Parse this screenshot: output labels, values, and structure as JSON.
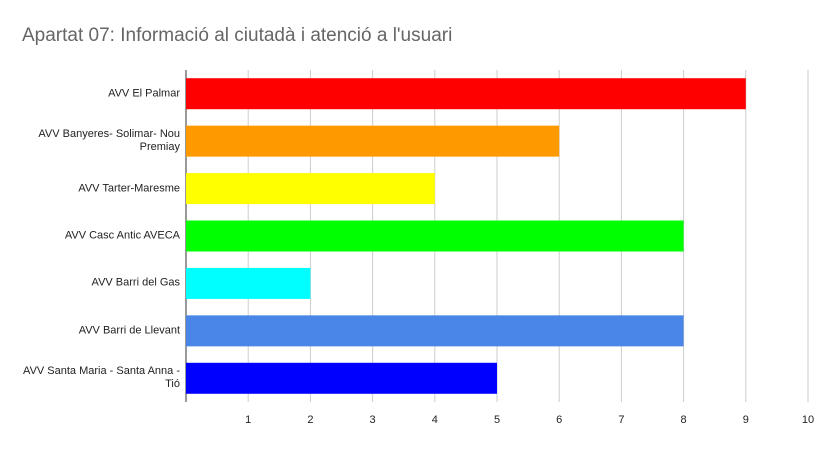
{
  "chart_data": {
    "type": "hbar",
    "title": "Apartat 07: Informació al ciutadà i atenció a l'usuari",
    "categories": [
      "AVV El Palmar",
      "AVV Banyeres- Solimar- Nou Premiay",
      "AVV Tarter-Maresme",
      "AVV Casc Antic AVECA",
      "AVV Barri del Gas",
      "AVV Barri de Llevant",
      "AVV Santa Maria - Santa Anna - Tió"
    ],
    "values": [
      9,
      6,
      4,
      8,
      2,
      8,
      5
    ],
    "colors": [
      "#ff0000",
      "#ff9900",
      "#ffff00",
      "#00ff00",
      "#00ffff",
      "#4a86e8",
      "#0000ff"
    ],
    "xlim": [
      0,
      10
    ],
    "xticks": [
      1,
      2,
      3,
      4,
      5,
      6,
      7,
      8,
      9,
      10
    ],
    "grid": true
  }
}
